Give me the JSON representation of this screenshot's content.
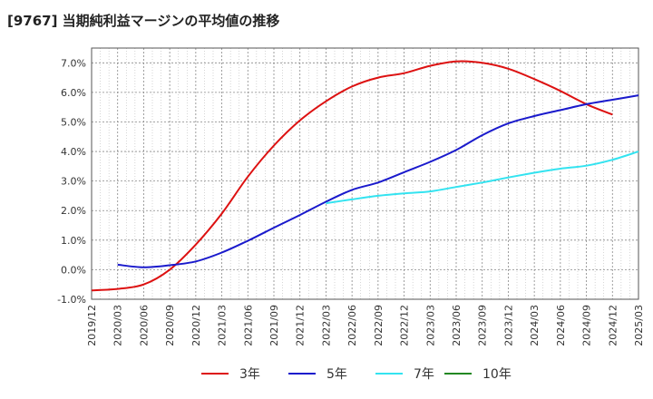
{
  "chart_data": {
    "type": "line",
    "title": "[9767]  当期純利益マージンの平均値の推移",
    "xlabel": "",
    "ylabel": "",
    "x_ticks": [
      "2019/12",
      "2020/03",
      "2020/06",
      "2020/09",
      "2020/12",
      "2021/03",
      "2021/06",
      "2021/09",
      "2021/12",
      "2022/03",
      "2022/06",
      "2022/09",
      "2022/12",
      "2023/03",
      "2023/06",
      "2023/09",
      "2023/12",
      "2024/03",
      "2024/06",
      "2024/09",
      "2024/12",
      "2025/03"
    ],
    "y_ticks": [
      "-1.0%",
      "0.0%",
      "1.0%",
      "2.0%",
      "3.0%",
      "4.0%",
      "5.0%",
      "6.0%",
      "7.0%"
    ],
    "ylim": [
      -1.0,
      7.5
    ],
    "grid": true,
    "legend_position": "bottom",
    "series": [
      {
        "name": "3年",
        "color": "#dd1111",
        "start_index": 0,
        "values": [
          -0.7,
          -0.65,
          -0.5,
          0.0,
          0.85,
          1.9,
          3.15,
          4.2,
          5.05,
          5.7,
          6.2,
          6.5,
          6.65,
          6.9,
          7.05,
          7.0,
          6.8,
          6.45,
          6.05,
          5.6,
          5.25
        ]
      },
      {
        "name": "5年",
        "color": "#1a1acc",
        "start_index": 1,
        "values": [
          0.17,
          0.08,
          0.15,
          0.28,
          0.58,
          0.98,
          1.42,
          1.85,
          2.3,
          2.7,
          2.95,
          3.3,
          3.65,
          4.05,
          4.55,
          4.95,
          5.2,
          5.4,
          5.6,
          5.75,
          5.9
        ]
      },
      {
        "name": "7年",
        "color": "#33e3f0",
        "start_index": 9,
        "values": [
          2.25,
          2.38,
          2.5,
          2.58,
          2.65,
          2.8,
          2.95,
          3.12,
          3.28,
          3.42,
          3.52,
          3.72,
          4.0
        ]
      },
      {
        "name": "10年",
        "color": "#228822",
        "start_index": 0,
        "values": []
      }
    ]
  }
}
